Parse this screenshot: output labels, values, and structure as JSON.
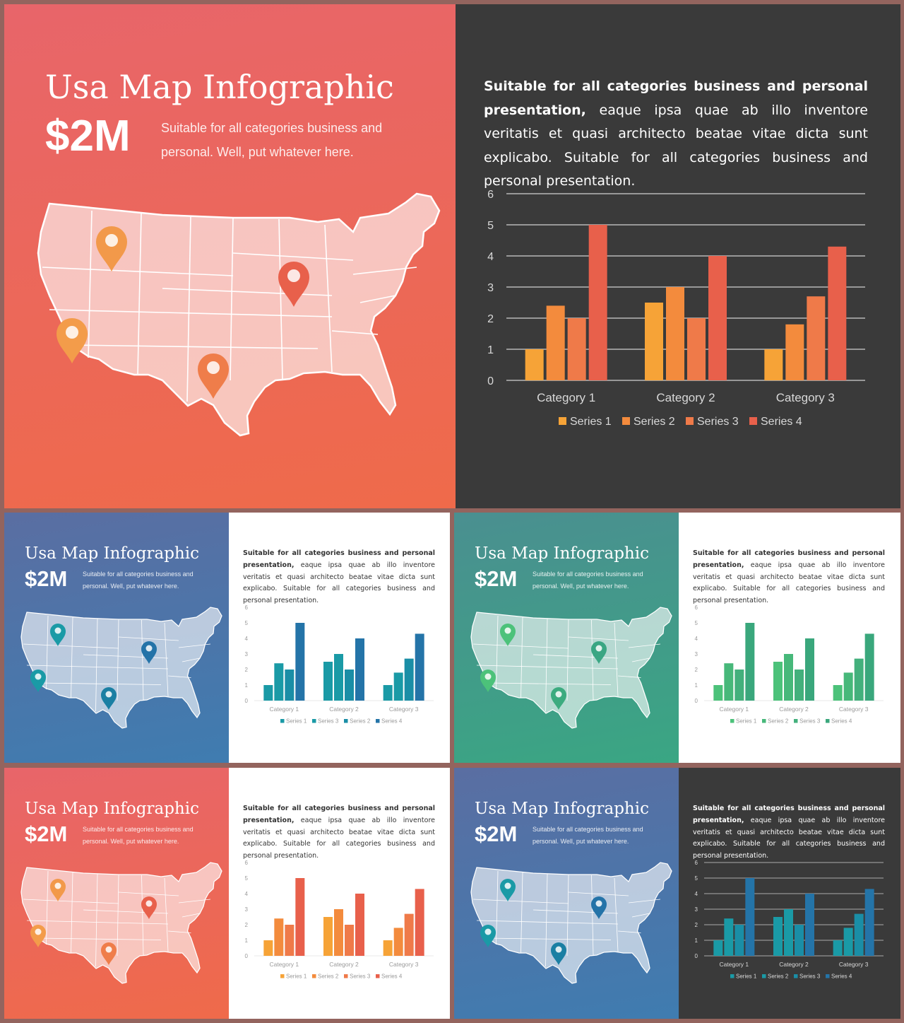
{
  "slide": {
    "title": "Usa Map Infographic",
    "amount": "$2M",
    "subtitle": "Suitable for all categories business and personal. Well, put whatever here.",
    "paragraph_bold": "Suitable for all categories business and personal presentation,",
    "paragraph_rest": " eaque ipsa quae ab illo inventore veritatis et quasi architecto beatae vitae dicta sunt explicabo. Suitable for all categories business and personal presentation."
  },
  "themes": {
    "red": {
      "bg_top": "#e8656a",
      "bg_bottom": "#ef6a4a",
      "pins": [
        "#f2994a",
        "#f39c4a",
        "#e8604b",
        "#ef7d4a"
      ],
      "bars": [
        "#f6a337",
        "#f38b3d",
        "#ef7a49",
        "#e8604b"
      ]
    },
    "blue": {
      "bg_top": "#5a6ea2",
      "bg_bottom": "#3f7cb0",
      "pins": [
        "#1a9aa6",
        "#1a9aa6",
        "#2473a8",
        "#1a7fa3"
      ],
      "bars": [
        "#1a9aa6",
        "#1a9aa6",
        "#1a8ea6",
        "#2474a8"
      ]
    },
    "green": {
      "bg_top": "#4a8f90",
      "bg_bottom": "#3aa683",
      "pins": [
        "#4cc27a",
        "#4cc27a",
        "#3aa683",
        "#3cab7f"
      ],
      "bars": [
        "#4cc27a",
        "#47b87a",
        "#43b07c",
        "#3aa77c"
      ]
    },
    "dark_bg": "#3a3a3a",
    "white_bg": "#ffffff"
  },
  "chart_data": [
    {
      "type": "bar",
      "categories": [
        "Category 1",
        "Category 2",
        "Category 3"
      ],
      "series": [
        {
          "name": "Series 1",
          "values": [
            1,
            2.5,
            1
          ]
        },
        {
          "name": "Series 2",
          "values": [
            2.4,
            3,
            1.8
          ]
        },
        {
          "name": "Series 3",
          "values": [
            2,
            2,
            2.7
          ]
        },
        {
          "name": "Series 4",
          "values": [
            5,
            4,
            4.3
          ]
        }
      ],
      "yticks": [
        "0",
        "1",
        "2",
        "3",
        "4",
        "5",
        "6"
      ],
      "ylim": [
        0,
        6
      ],
      "grid": true,
      "legend": "bottom"
    }
  ],
  "panels": [
    {
      "id": "large",
      "map_theme": "red",
      "chart_bg": "dark",
      "legend_labels": [
        "Series 1",
        "Series 2",
        "Series 3",
        "Series 4"
      ]
    },
    {
      "id": "blue-white",
      "map_theme": "blue",
      "chart_bg": "white",
      "legend_labels": [
        "Series 1",
        "Series 3",
        "Series 2",
        "Series 4"
      ]
    },
    {
      "id": "green-white",
      "map_theme": "green",
      "chart_bg": "white",
      "legend_labels": [
        "Series 1",
        "Series 2",
        "Series 3",
        "Series 4"
      ]
    },
    {
      "id": "red-white",
      "map_theme": "red",
      "chart_bg": "white",
      "legend_labels": [
        "Series 1",
        "Series 2",
        "Series 3",
        "Series 4"
      ]
    },
    {
      "id": "blue-dark",
      "map_theme": "blue",
      "chart_bg": "dark",
      "legend_labels": [
        "Series 1",
        "Series 2",
        "Series 3",
        "Series 4"
      ]
    }
  ]
}
